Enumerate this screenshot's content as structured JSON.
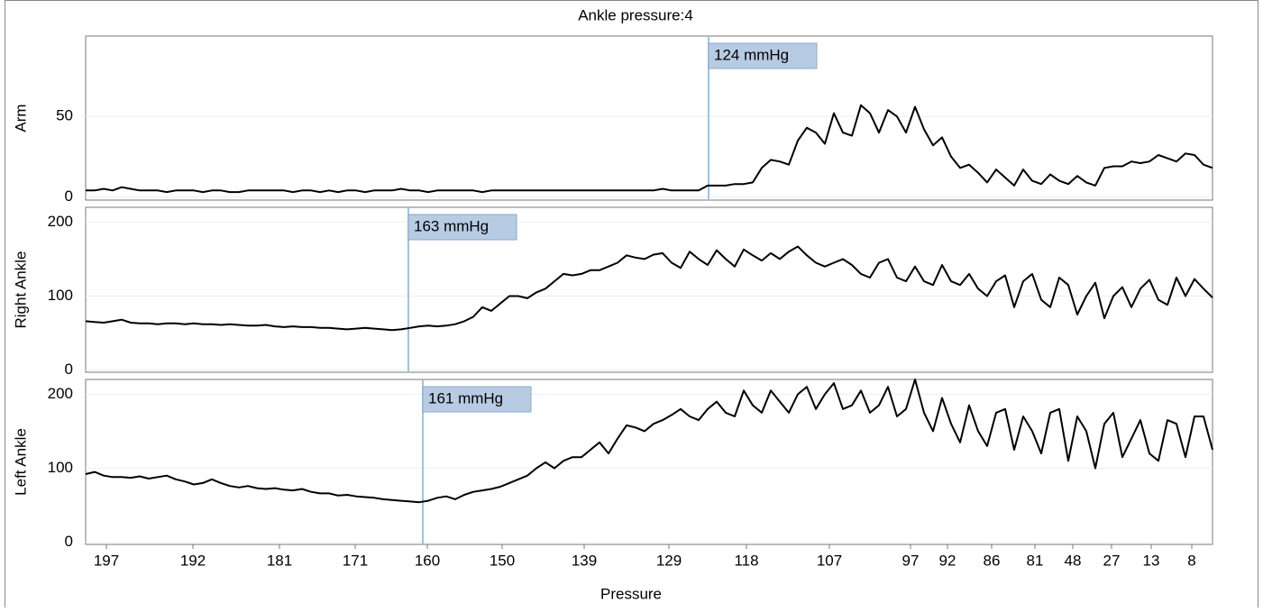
{
  "chart_data": {
    "type": "line",
    "title": "Ankle pressure:4",
    "x_label": "Pressure",
    "color": "#000000",
    "grid": true,
    "x": [
      0,
      1,
      2,
      3,
      4,
      5,
      6,
      7,
      8,
      9,
      10,
      11,
      12,
      13,
      14,
      15,
      16,
      17,
      18,
      19,
      20,
      21,
      22,
      23,
      24,
      25,
      26,
      27,
      28,
      29,
      30,
      31,
      32,
      33,
      34,
      35,
      36,
      37,
      38,
      39,
      40,
      41,
      42,
      43,
      44,
      45,
      46,
      47,
      48,
      49,
      50,
      51,
      52,
      53,
      54,
      55,
      56,
      57,
      58,
      59,
      60,
      61,
      62,
      63,
      64,
      65,
      66,
      67,
      68,
      69,
      70,
      71,
      72,
      73,
      74,
      75,
      76,
      77,
      78,
      79,
      80,
      81,
      82,
      83,
      84,
      85,
      86,
      87,
      88,
      89,
      90,
      91,
      92,
      93,
      94,
      95,
      96,
      97,
      98,
      99,
      100,
      101,
      102,
      103,
      104,
      105,
      106,
      107,
      108,
      109,
      110,
      111,
      112,
      113,
      114,
      115,
      116,
      117,
      118,
      119,
      120,
      121,
      122,
      123,
      124,
      125
    ],
    "xlim": [
      0,
      125
    ],
    "xticks": [
      {
        "value": 2.3,
        "label": "197"
      },
      {
        "value": 11.9,
        "label": "192"
      },
      {
        "value": 21.5,
        "label": "181"
      },
      {
        "value": 29.9,
        "label": "171"
      },
      {
        "value": 37.9,
        "label": "160"
      },
      {
        "value": 46.2,
        "label": "150"
      },
      {
        "value": 55.3,
        "label": "139"
      },
      {
        "value": 64.7,
        "label": "129"
      },
      {
        "value": 73.3,
        "label": "118"
      },
      {
        "value": 82.5,
        "label": "107"
      },
      {
        "value": 91.5,
        "label": "97"
      },
      {
        "value": 95.6,
        "label": "92"
      },
      {
        "value": 100.5,
        "label": "86"
      },
      {
        "value": 105.3,
        "label": "81"
      },
      {
        "value": 109.5,
        "label": "48"
      },
      {
        "value": 113.8,
        "label": "27"
      },
      {
        "value": 118.2,
        "label": "13"
      },
      {
        "value": 122.7,
        "label": "8"
      }
    ],
    "panels": [
      {
        "y_label": "Arm",
        "ylim": [
          -2,
          100
        ],
        "yticks": [
          0,
          50
        ],
        "marker": {
          "x": 69.1,
          "label": "124 mmHg"
        },
        "values": [
          4,
          4,
          5,
          4,
          6,
          5,
          4,
          4,
          4,
          3,
          4,
          4,
          4,
          3,
          4,
          4,
          3,
          3,
          4,
          4,
          4,
          4,
          4,
          3,
          4,
          4,
          3,
          4,
          3,
          4,
          4,
          3,
          4,
          4,
          4,
          5,
          4,
          4,
          3,
          4,
          4,
          4,
          4,
          4,
          3,
          4,
          4,
          4,
          4,
          4,
          4,
          4,
          4,
          4,
          4,
          4,
          4,
          4,
          4,
          4,
          4,
          4,
          4,
          4,
          5,
          4,
          4,
          4,
          4,
          7,
          7,
          7,
          8,
          8,
          9,
          18,
          23,
          22,
          20,
          35,
          43,
          40,
          33,
          52,
          40,
          38,
          57,
          52,
          40,
          54,
          50,
          40,
          56,
          42,
          32,
          37,
          25,
          18,
          20,
          15,
          9,
          17,
          12,
          7,
          17,
          10,
          8,
          14,
          10,
          8,
          13,
          9,
          7,
          18,
          19,
          19,
          22,
          21,
          22,
          26,
          24,
          22,
          27,
          26,
          20,
          18
        ]
      },
      {
        "y_label": "Right Ankle",
        "ylim": [
          -3,
          220
        ],
        "yticks": [
          0,
          100,
          200
        ],
        "marker": {
          "x": 35.8,
          "label": "163 mmHg"
        },
        "values": [
          66,
          65,
          64,
          66,
          68,
          64,
          63,
          63,
          62,
          63,
          63,
          62,
          63,
          62,
          62,
          61,
          62,
          61,
          60,
          60,
          61,
          59,
          58,
          59,
          58,
          58,
          57,
          57,
          56,
          55,
          56,
          57,
          56,
          55,
          54,
          55,
          57,
          59,
          60,
          59,
          60,
          62,
          66,
          72,
          85,
          80,
          90,
          100,
          100,
          97,
          105,
          110,
          120,
          130,
          128,
          130,
          135,
          135,
          140,
          145,
          155,
          152,
          150,
          156,
          158,
          145,
          138,
          160,
          150,
          142,
          162,
          150,
          140,
          163,
          155,
          148,
          158,
          150,
          160,
          167,
          155,
          145,
          140,
          145,
          150,
          142,
          130,
          125,
          145,
          150,
          125,
          120,
          140,
          120,
          115,
          142,
          120,
          115,
          130,
          110,
          100,
          120,
          128,
          85,
          120,
          130,
          95,
          85,
          125,
          115,
          75,
          100,
          118,
          70,
          100,
          112,
          85,
          110,
          122,
          95,
          88,
          125,
          100,
          123,
          110,
          98
        ]
      },
      {
        "y_label": "Left Ankle",
        "ylim": [
          -3,
          220
        ],
        "yticks": [
          0,
          100,
          200
        ],
        "marker": {
          "x": 37.4,
          "label": "161 mmHg"
        },
        "values": [
          92,
          95,
          90,
          88,
          88,
          87,
          89,
          86,
          88,
          90,
          85,
          82,
          78,
          80,
          85,
          80,
          76,
          74,
          76,
          73,
          72,
          73,
          71,
          70,
          72,
          68,
          66,
          66,
          63,
          64,
          62,
          61,
          60,
          58,
          57,
          56,
          55,
          54,
          56,
          60,
          62,
          58,
          64,
          68,
          70,
          72,
          75,
          80,
          85,
          90,
          100,
          108,
          100,
          110,
          115,
          115,
          125,
          135,
          120,
          140,
          158,
          155,
          150,
          160,
          165,
          172,
          180,
          170,
          165,
          180,
          190,
          175,
          170,
          205,
          185,
          175,
          205,
          190,
          175,
          200,
          210,
          180,
          200,
          215,
          180,
          185,
          205,
          175,
          185,
          210,
          170,
          180,
          220,
          175,
          150,
          195,
          160,
          135,
          185,
          150,
          130,
          175,
          180,
          125,
          170,
          150,
          120,
          175,
          180,
          110,
          170,
          150,
          100,
          160,
          175,
          115,
          140,
          165,
          120,
          110,
          165,
          160,
          115,
          170,
          170,
          125
        ]
      }
    ]
  }
}
